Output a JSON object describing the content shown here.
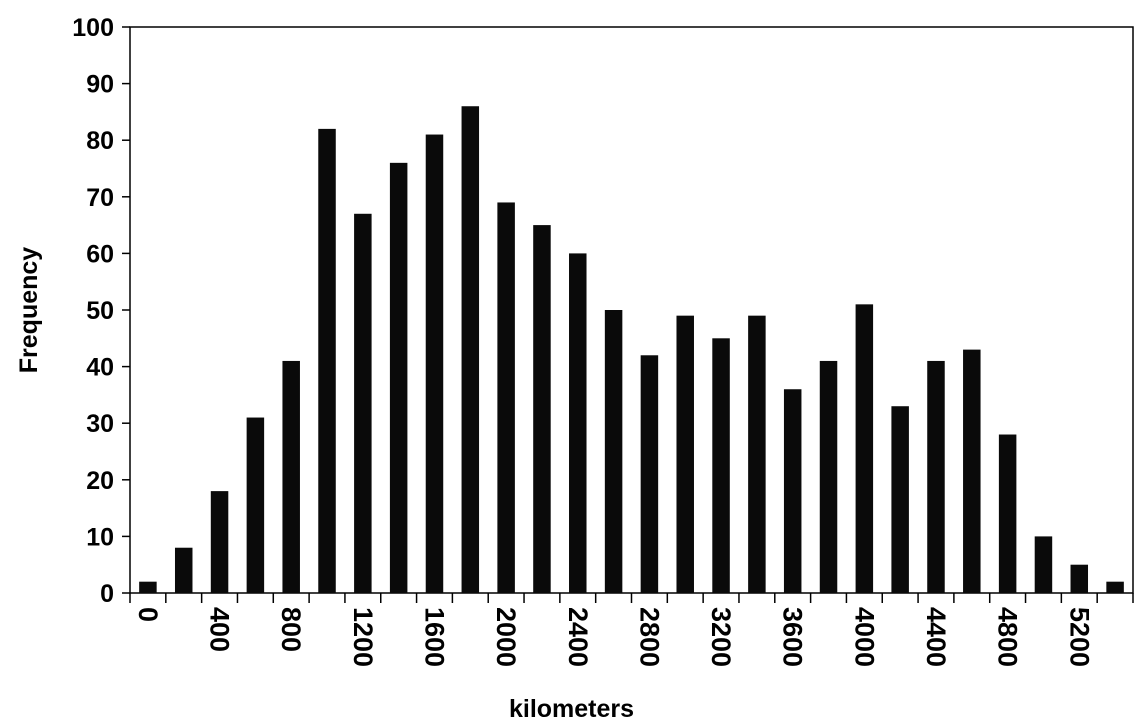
{
  "chart_data": {
    "type": "bar",
    "xlabel": "kilometers",
    "ylabel": "Frequency",
    "ylim": [
      0,
      100
    ],
    "y_ticks": [
      "0",
      "10",
      "20",
      "30",
      "40",
      "50",
      "60",
      "70",
      "80",
      "90",
      "100"
    ],
    "x_tick_labels": [
      "0",
      "400",
      "800",
      "1200",
      "1600",
      "2000",
      "2400",
      "2800",
      "3200",
      "3600",
      "4000",
      "4400",
      "4800",
      "5200"
    ],
    "categories": [
      "0",
      "200",
      "400",
      "600",
      "800",
      "1000",
      "1200",
      "1400",
      "1600",
      "1800",
      "2000",
      "2200",
      "2400",
      "2600",
      "2800",
      "3000",
      "3200",
      "3400",
      "3600",
      "3800",
      "4000",
      "4200",
      "4400",
      "4600",
      "4800",
      "5000",
      "5200",
      "5400"
    ],
    "values": [
      2,
      8,
      18,
      31,
      41,
      82,
      67,
      76,
      81,
      86,
      69,
      65,
      60,
      50,
      42,
      49,
      45,
      49,
      36,
      41,
      51,
      33,
      41,
      43,
      28,
      10,
      5,
      2
    ],
    "grid": false,
    "legend": "none",
    "bar_color": "#0a0a0a"
  }
}
